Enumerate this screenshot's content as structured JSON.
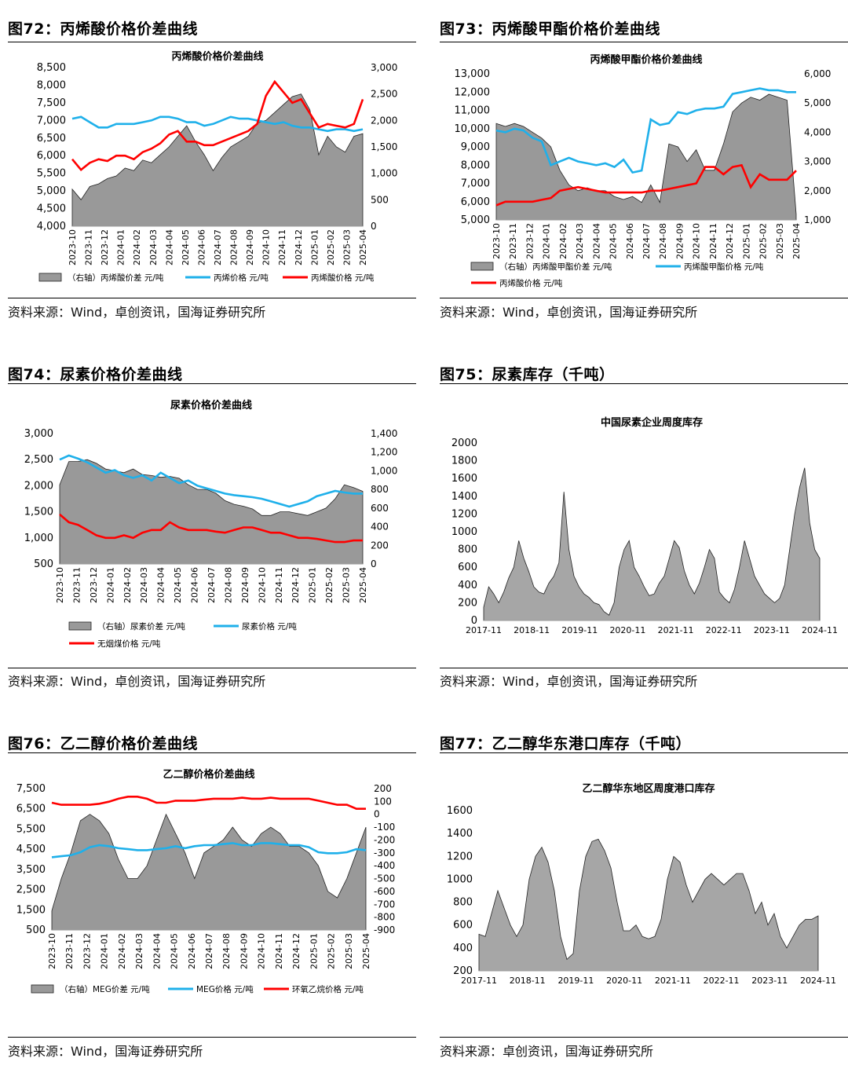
{
  "panels": [
    {
      "fig_label": "图72：丙烯酸价格价差曲线",
      "source": "资料来源：Wind，卓创资讯，国海证券研究所",
      "chart": {
        "type": "area",
        "title": "丙烯酸价格价差曲线",
        "x_ticks": [
          "2023-10",
          "2023-11",
          "2023-12",
          "2024-01",
          "2024-02",
          "2024-03",
          "2024-04",
          "2024-05",
          "2024-06",
          "2024-07",
          "2024-08",
          "2024-09",
          "2024-10",
          "2024-11",
          "2024-12",
          "2025-01",
          "2025-02",
          "2025-03",
          "2025-04"
        ],
        "left_ticks": [
          "4,000",
          "4,500",
          "5,000",
          "5,500",
          "6,000",
          "6,500",
          "7,000",
          "7,500",
          "8,000",
          "8,500"
        ],
        "right_ticks": [
          "0",
          "500",
          "1,000",
          "1,500",
          "2,000",
          "2,500",
          "3,000"
        ],
        "ylim": [
          4000,
          8500
        ],
        "y2lim": [
          0,
          3000
        ],
        "legend": [
          "（右轴）丙烯酸价差  元/吨",
          "丙烯价格  元/吨",
          "丙烯酸价格  元/吨"
        ],
        "series": [
          {
            "name": "（右轴）丙烯酸价差  元/吨",
            "kind": "area",
            "axis": "right",
            "color": "#999999",
            "values": [
              700,
              500,
              750,
              800,
              900,
              950,
              1100,
              1050,
              1250,
              1200,
              1350,
              1500,
              1700,
              1900,
              1600,
              1350,
              1050,
              1300,
              1500,
              1600,
              1700,
              1950,
              2000,
              2150,
              2300,
              2450,
              2500,
              2200,
              1350,
              1700,
              1500,
              1400,
              1700,
              1750
            ]
          },
          {
            "name": "丙烯价格  元/吨",
            "kind": "line",
            "axis": "left",
            "color": "#1fb0ea",
            "values": [
              7050,
              7100,
              6950,
              6800,
              6800,
              6900,
              6900,
              6900,
              6950,
              7000,
              7100,
              7100,
              7050,
              6950,
              6950,
              6850,
              6900,
              7000,
              7100,
              7050,
              7050,
              7000,
              6950,
              6900,
              6950,
              6850,
              6800,
              6800,
              6750,
              6700,
              6750,
              6750,
              6700,
              6750
            ]
          },
          {
            "name": "丙烯酸价格  元/吨",
            "kind": "line",
            "axis": "left",
            "color": "#ff0000",
            "values": [
              5900,
              5600,
              5800,
              5900,
              5850,
              6000,
              6000,
              5900,
              6100,
              6200,
              6350,
              6600,
              6700,
              6400,
              6400,
              6300,
              6300,
              6400,
              6500,
              6600,
              6700,
              6900,
              7700,
              8100,
              7800,
              7500,
              7600,
              7200,
              6800,
              6900,
              6850,
              6800,
              6900,
              7600
            ]
          }
        ]
      }
    },
    {
      "fig_label": "图73：丙烯酸甲酯价格价差曲线",
      "source": "资料来源：Wind，卓创资讯，国海证券研究所",
      "chart": {
        "type": "area",
        "title": "丙烯酸甲酯价格价差曲线",
        "x_ticks": [
          "2023-10",
          "2023-11",
          "2023-12",
          "2024-01",
          "2024-02",
          "2024-03",
          "2024-04",
          "2024-05",
          "2024-06",
          "2024-07",
          "2024-08",
          "2024-09",
          "2024-10",
          "2024-11",
          "2024-12",
          "2025-01",
          "2025-02",
          "2025-03",
          "2025-04"
        ],
        "left_ticks": [
          "5,000",
          "6,000",
          "7,000",
          "8,000",
          "9,000",
          "10,000",
          "11,000",
          "12,000",
          "13,000"
        ],
        "right_ticks": [
          "1,000",
          "2,000",
          "3,000",
          "4,000",
          "5,000",
          "6,000"
        ],
        "ylim": [
          5000,
          13000
        ],
        "y2lim": [
          1000,
          6000
        ],
        "legend": [
          "（右轴）丙烯酸甲酯价差  元/吨",
          "丙烯酸甲酯价格  元/吨",
          "丙烯酸价格  元/吨"
        ],
        "series": [
          {
            "name": "（右轴）丙烯酸甲酯价差  元/吨",
            "kind": "area",
            "axis": "right",
            "color": "#999999",
            "values": [
              4300,
              4200,
              4300,
              4200,
              4000,
              3800,
              3500,
              2700,
              2200,
              2000,
              2100,
              2000,
              2000,
              1800,
              1700,
              1800,
              1600,
              2200,
              1600,
              3600,
              3500,
              3000,
              3400,
              2700,
              2700,
              3600,
              4700,
              5000,
              5200,
              5100,
              5300,
              5200,
              5100,
              1200
            ]
          },
          {
            "name": "丙烯酸甲酯价格  元/吨",
            "kind": "line",
            "axis": "left",
            "color": "#1fb0ea",
            "values": [
              9900,
              9800,
              10000,
              9900,
              9500,
              9300,
              8000,
              8200,
              8400,
              8200,
              8100,
              8000,
              8100,
              7900,
              8300,
              7600,
              7700,
              10500,
              10200,
              10300,
              10900,
              10800,
              11000,
              11100,
              11100,
              11200,
              11900,
              12000,
              12100,
              12200,
              12100,
              12100,
              12000,
              12000
            ]
          },
          {
            "name": "丙烯酸价格  元/吨",
            "kind": "line",
            "axis": "left",
            "color": "#ff0000",
            "values": [
              5800,
              6000,
              6000,
              6000,
              6000,
              6100,
              6200,
              6600,
              6700,
              6800,
              6700,
              6600,
              6500,
              6500,
              6500,
              6500,
              6500,
              6600,
              6600,
              6700,
              6800,
              6900,
              7000,
              7900,
              7900,
              7500,
              7900,
              8000,
              6800,
              7500,
              7200,
              7200,
              7200,
              7700
            ]
          }
        ]
      }
    },
    {
      "fig_label": "图74：尿素价格价差曲线",
      "source": "资料来源：Wind，卓创资讯，国海证券研究所",
      "chart": {
        "type": "area",
        "title": "尿素价格价差曲线",
        "x_ticks": [
          "2023-10",
          "2023-11",
          "2023-12",
          "2024-01",
          "2024-02",
          "2024-03",
          "2024-04",
          "2024-05",
          "2024-06",
          "2024-07",
          "2024-08",
          "2024-09",
          "2024-10",
          "2024-11",
          "2024-12",
          "2025-01",
          "2025-02",
          "2025-03",
          "2025-04"
        ],
        "left_ticks": [
          "500",
          "1,000",
          "1,500",
          "2,000",
          "2,500",
          "3,000"
        ],
        "right_ticks": [
          "0",
          "200",
          "400",
          "600",
          "800",
          "1,000",
          "1,200",
          "1,400"
        ],
        "ylim": [
          500,
          3000
        ],
        "y2lim": [
          0,
          1400
        ],
        "legend": [
          "（右轴）尿素价差  元/吨",
          "尿素价格  元/吨",
          "无烟煤价格  元/吨"
        ],
        "series": [
          {
            "name": "（右轴）尿素价差  元/吨",
            "kind": "area",
            "axis": "right",
            "color": "#999999",
            "values": [
              850,
              1100,
              1100,
              1120,
              1080,
              1020,
              1000,
              980,
              1020,
              960,
              950,
              930,
              940,
              920,
              850,
              800,
              800,
              760,
              680,
              640,
              620,
              590,
              520,
              520,
              560,
              560,
              540,
              520,
              560,
              600,
              700,
              850,
              820,
              780
            ]
          },
          {
            "name": "尿素价格  元/吨",
            "kind": "line",
            "axis": "left",
            "color": "#1fb0ea",
            "values": [
              2500,
              2580,
              2520,
              2450,
              2350,
              2250,
              2300,
              2200,
              2150,
              2200,
              2100,
              2250,
              2150,
              2050,
              2100,
              2000,
              1950,
              1900,
              1850,
              1820,
              1800,
              1780,
              1750,
              1700,
              1650,
              1600,
              1650,
              1700,
              1800,
              1850,
              1900,
              1870,
              1850,
              1850
            ]
          },
          {
            "name": "无烟煤价格  元/吨",
            "kind": "line",
            "axis": "left",
            "color": "#ff0000",
            "values": [
              1450,
              1300,
              1250,
              1150,
              1050,
              1000,
              1000,
              1050,
              1000,
              1100,
              1150,
              1150,
              1300,
              1200,
              1150,
              1150,
              1150,
              1120,
              1100,
              1150,
              1200,
              1200,
              1150,
              1100,
              1100,
              1050,
              1000,
              1000,
              980,
              950,
              920,
              920,
              950,
              950
            ]
          }
        ]
      }
    },
    {
      "fig_label": "图75：尿素库存（千吨）",
      "source": "资料来源：Wind，卓创资讯，国海证券研究所",
      "chart": {
        "type": "area",
        "title": "中国尿素企业周度库存",
        "x_ticks": [
          "2017-11",
          "2018-11",
          "2019-11",
          "2020-11",
          "2021-11",
          "2022-11",
          "2023-11",
          "2024-11"
        ],
        "left_ticks": [
          "0",
          "200",
          "400",
          "600",
          "800",
          "1000",
          "1200",
          "1400",
          "1600",
          "1800",
          "2000"
        ],
        "ylim": [
          0,
          2000
        ],
        "series": [
          {
            "name": "",
            "kind": "area",
            "axis": "left",
            "color": "#a6a6a6",
            "values": [
              150,
              380,
              300,
              200,
              320,
              480,
              600,
              900,
              700,
              550,
              380,
              320,
              300,
              420,
              500,
              650,
              1450,
              800,
              500,
              380,
              300,
              260,
              200,
              180,
              100,
              60,
              200,
              600,
              800,
              900,
              600,
              500,
              380,
              280,
              300,
              420,
              500,
              700,
              900,
              820,
              560,
              400,
              300,
              420,
              600,
              800,
              700,
              320,
              250,
              200,
              350,
              600,
              900,
              700,
              500,
              400,
              300,
              250,
              200,
              250,
              400,
              800,
              1200,
              1500,
              1720,
              1100,
              800,
              700
            ]
          }
        ]
      }
    },
    {
      "fig_label": "图76：乙二醇价格价差曲线",
      "source": "资料来源：Wind，国海证券研究所",
      "chart": {
        "type": "area",
        "title": "乙二醇价格价差曲线",
        "x_ticks": [
          "2023-10",
          "2023-11",
          "2023-12",
          "2024-01",
          "2024-02",
          "2024-03",
          "2024-04",
          "2024-05",
          "2024-06",
          "2024-07",
          "2024-08",
          "2024-09",
          "2024-10",
          "2024-11",
          "2024-12",
          "2025-01",
          "2025-02",
          "2025-03",
          "2025-04"
        ],
        "left_ticks": [
          "500",
          "1,500",
          "2,500",
          "3,500",
          "4,500",
          "5,500",
          "6,500",
          "7,500"
        ],
        "right_ticks": [
          "-900",
          "-800",
          "-700",
          "-600",
          "-500",
          "-400",
          "-300",
          "-200",
          "-100",
          "0",
          "100",
          "200"
        ],
        "ylim": [
          500,
          7500
        ],
        "y2lim": [
          -900,
          200
        ],
        "legend": [
          "（右轴）MEG价差  元/吨",
          "MEG价格  元/吨",
          "环氧乙烷价格  元/吨"
        ],
        "series": [
          {
            "name": "（右轴）MEG价差  元/吨",
            "kind": "area",
            "axis": "right",
            "color": "#999999",
            "values": [
              -750,
              -500,
              -300,
              -50,
              0,
              -50,
              -150,
              -350,
              -500,
              -500,
              -400,
              -200,
              0,
              -150,
              -300,
              -500,
              -300,
              -250,
              -200,
              -100,
              -200,
              -250,
              -150,
              -100,
              -150,
              -250,
              -250,
              -300,
              -400,
              -600,
              -650,
              -500,
              -300,
              -100
            ]
          },
          {
            "name": "MEG价格  元/吨",
            "kind": "line",
            "axis": "left",
            "color": "#1fb0ea",
            "values": [
              4100,
              4150,
              4200,
              4350,
              4600,
              4700,
              4650,
              4550,
              4500,
              4450,
              4450,
              4500,
              4550,
              4650,
              4550,
              4650,
              4700,
              4700,
              4750,
              4800,
              4700,
              4700,
              4800,
              4800,
              4750,
              4700,
              4700,
              4600,
              4350,
              4300,
              4300,
              4350,
              4500,
              4450
            ]
          },
          {
            "name": "环氧乙烷价格  元/吨",
            "kind": "line",
            "axis": "left",
            "color": "#ff0000",
            "values": [
              6800,
              6700,
              6700,
              6700,
              6700,
              6750,
              6850,
              7000,
              7100,
              7100,
              7000,
              6800,
              6800,
              6900,
              6900,
              6900,
              6950,
              7000,
              7000,
              7000,
              7050,
              7000,
              7000,
              7050,
              7000,
              7000,
              7000,
              7000,
              6900,
              6800,
              6700,
              6700,
              6500,
              6500
            ]
          }
        ]
      }
    },
    {
      "fig_label": "图77：乙二醇华东港口库存（千吨）",
      "source": "资料来源：卓创资讯，国海证券研究所",
      "chart": {
        "type": "area",
        "title": "乙二醇华东地区周度港口库存",
        "x_ticks": [
          "2017-11",
          "2018-11",
          "2019-11",
          "2020-11",
          "2021-11",
          "2022-11",
          "2023-11",
          "2024-11"
        ],
        "left_ticks": [
          "200",
          "400",
          "600",
          "800",
          "1000",
          "1200",
          "1400",
          "1600"
        ],
        "ylim": [
          200,
          1600
        ],
        "series": [
          {
            "name": "",
            "kind": "area",
            "axis": "left",
            "color": "#a6a6a6",
            "values": [
              520,
              500,
              700,
              900,
              750,
              600,
              500,
              600,
              1000,
              1200,
              1280,
              1150,
              900,
              500,
              300,
              350,
              900,
              1200,
              1330,
              1350,
              1250,
              1100,
              800,
              550,
              550,
              600,
              500,
              480,
              500,
              650,
              1000,
              1200,
              1150,
              950,
              800,
              900,
              1000,
              1050,
              1000,
              950,
              1000,
              1050,
              1050,
              900,
              700,
              800,
              600,
              700,
              500,
              400,
              500,
              600,
              650,
              650,
              680
            ]
          }
        ]
      }
    }
  ]
}
